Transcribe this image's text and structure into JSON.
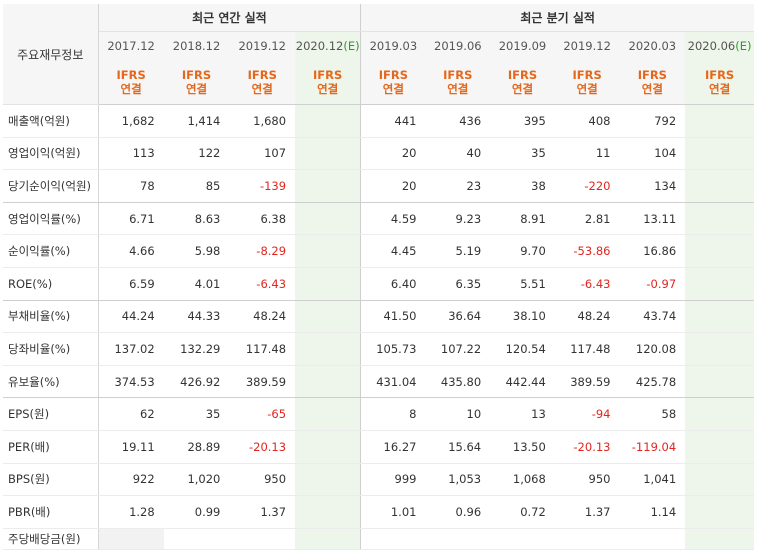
{
  "header": {
    "row_label_title": "주요재무정보",
    "annual_title": "최근 연간 실적",
    "quarterly_title": "최근 분기 실적",
    "annual_periods": [
      "2017.12",
      "2018.12",
      "2019.12",
      "2020.12"
    ],
    "quarterly_periods": [
      "2019.03",
      "2019.06",
      "2019.09",
      "2019.12",
      "2020.03",
      "2020.06"
    ],
    "estimate_mark": "(E)",
    "ifrs_line1": "IFRS",
    "ifrs_line2": "연결"
  },
  "rows": [
    {
      "label": "매출액(억원)",
      "annual": [
        "1,682",
        "1,414",
        "1,680",
        ""
      ],
      "quarterly": [
        "441",
        "436",
        "395",
        "408",
        "792",
        ""
      ]
    },
    {
      "label": "영업이익(억원)",
      "annual": [
        "113",
        "122",
        "107",
        ""
      ],
      "quarterly": [
        "20",
        "40",
        "35",
        "11",
        "104",
        ""
      ]
    },
    {
      "label": "당기순이익(억원)",
      "annual": [
        "78",
        "85",
        "-139",
        ""
      ],
      "quarterly": [
        "20",
        "23",
        "38",
        "-220",
        "134",
        ""
      ]
    },
    {
      "label": "영업이익률(%)",
      "annual": [
        "6.71",
        "8.63",
        "6.38",
        ""
      ],
      "quarterly": [
        "4.59",
        "9.23",
        "8.91",
        "2.81",
        "13.11",
        ""
      ]
    },
    {
      "label": "순이익률(%)",
      "annual": [
        "4.66",
        "5.98",
        "-8.29",
        ""
      ],
      "quarterly": [
        "4.45",
        "5.19",
        "9.70",
        "-53.86",
        "16.86",
        ""
      ]
    },
    {
      "label": "ROE(%)",
      "annual": [
        "6.59",
        "4.01",
        "-6.43",
        ""
      ],
      "quarterly": [
        "6.40",
        "6.35",
        "5.51",
        "-6.43",
        "-0.97",
        ""
      ]
    },
    {
      "label": "부채비율(%)",
      "annual": [
        "44.24",
        "44.33",
        "48.24",
        ""
      ],
      "quarterly": [
        "41.50",
        "36.64",
        "38.10",
        "48.24",
        "43.74",
        ""
      ]
    },
    {
      "label": "당좌비율(%)",
      "annual": [
        "137.02",
        "132.29",
        "117.48",
        ""
      ],
      "quarterly": [
        "105.73",
        "107.22",
        "120.54",
        "117.48",
        "120.08",
        ""
      ]
    },
    {
      "label": "유보율(%)",
      "annual": [
        "374.53",
        "426.92",
        "389.59",
        ""
      ],
      "quarterly": [
        "431.04",
        "435.80",
        "442.44",
        "389.59",
        "425.78",
        ""
      ]
    },
    {
      "label": "EPS(원)",
      "annual": [
        "62",
        "35",
        "-65",
        ""
      ],
      "quarterly": [
        "8",
        "10",
        "13",
        "-94",
        "58",
        ""
      ]
    },
    {
      "label": "PER(배)",
      "annual": [
        "19.11",
        "28.89",
        "-20.13",
        ""
      ],
      "quarterly": [
        "16.27",
        "15.64",
        "13.50",
        "-20.13",
        "-119.04",
        ""
      ]
    },
    {
      "label": "BPS(원)",
      "annual": [
        "922",
        "1,020",
        "950",
        ""
      ],
      "quarterly": [
        "999",
        "1,053",
        "1,068",
        "950",
        "1,041",
        ""
      ]
    },
    {
      "label": "PBR(배)",
      "annual": [
        "1.28",
        "0.99",
        "1.37",
        ""
      ],
      "quarterly": [
        "1.01",
        "0.96",
        "0.72",
        "1.37",
        "1.14",
        ""
      ]
    },
    {
      "label": "주당배당금(원)",
      "annual": [
        "",
        "",
        "",
        ""
      ],
      "quarterly": [
        "",
        "",
        "",
        "",
        "",
        ""
      ]
    }
  ],
  "colors": {
    "header_bg": "#f6f6f6",
    "ifrs_orange": "#e4681c",
    "estimate_bg": "#eef5ea",
    "estimate_mark": "#2e9b2e",
    "negative_red": "#e0261f"
  }
}
